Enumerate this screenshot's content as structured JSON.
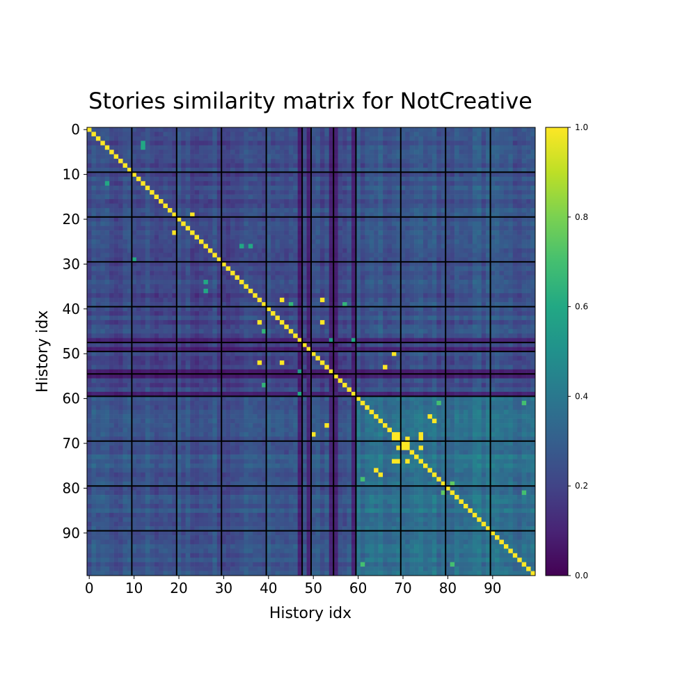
{
  "chart_data": {
    "type": "heatmap",
    "title": "Stories similarity matrix for NotCreative",
    "xlabel": "History idx",
    "ylabel": "History idx",
    "n": 100,
    "x_ticks": [
      "0",
      "10",
      "20",
      "30",
      "40",
      "50",
      "60",
      "70",
      "80",
      "90"
    ],
    "y_ticks": [
      "0",
      "10",
      "20",
      "30",
      "40",
      "50",
      "60",
      "70",
      "80",
      "90"
    ],
    "colorbar": {
      "min": 0.0,
      "max": 1.0,
      "ticks": [
        "0.0",
        "0.2",
        "0.4",
        "0.6",
        "0.8",
        "1.0"
      ]
    },
    "colormap": "viridis",
    "diagonal_value": 1.0,
    "grid_lines": [
      9.5,
      19.5,
      29.5,
      39.5,
      47.5,
      49.5,
      54.5,
      59.5,
      69.5,
      79.5,
      89.5
    ],
    "high_similarity_pairs": [
      [
        19,
        23,
        1.0
      ],
      [
        23,
        19,
        1.0
      ],
      [
        38,
        43,
        1.0
      ],
      [
        38,
        52,
        1.0
      ],
      [
        43,
        38,
        1.0
      ],
      [
        43,
        52,
        1.0
      ],
      [
        52,
        38,
        1.0
      ],
      [
        52,
        43,
        1.0
      ],
      [
        50,
        68,
        1.0
      ],
      [
        68,
        50,
        1.0
      ],
      [
        53,
        66,
        1.0
      ],
      [
        66,
        53,
        1.0
      ],
      [
        64,
        76,
        1.0
      ],
      [
        65,
        77,
        1.0
      ],
      [
        76,
        64,
        1.0
      ],
      [
        77,
        65,
        1.0
      ],
      [
        68,
        69,
        1.0
      ],
      [
        69,
        68,
        1.0
      ],
      [
        68,
        74,
        1.0
      ],
      [
        74,
        68,
        1.0
      ],
      [
        69,
        71,
        1.0
      ],
      [
        71,
        69,
        1.0
      ],
      [
        69,
        74,
        1.0
      ],
      [
        74,
        69,
        1.0
      ],
      [
        71,
        74,
        1.0
      ],
      [
        74,
        71,
        1.0
      ],
      [
        70,
        71,
        1.0
      ],
      [
        71,
        70,
        1.0
      ],
      [
        12,
        4,
        0.6
      ],
      [
        4,
        12,
        0.6
      ],
      [
        3,
        12,
        0.6
      ],
      [
        26,
        34,
        0.6
      ],
      [
        34,
        26,
        0.6
      ],
      [
        29,
        10,
        0.6
      ],
      [
        36,
        26,
        0.6
      ],
      [
        26,
        36,
        0.6
      ],
      [
        39,
        45,
        0.65
      ],
      [
        45,
        39,
        0.65
      ],
      [
        79,
        81,
        0.75
      ],
      [
        81,
        79,
        0.75
      ],
      [
        61,
        78,
        0.7
      ],
      [
        78,
        61,
        0.7
      ],
      [
        97,
        81,
        0.7
      ],
      [
        81,
        97,
        0.7
      ],
      [
        61,
        97,
        0.7
      ],
      [
        97,
        61,
        0.7
      ],
      [
        57,
        39,
        0.65
      ],
      [
        39,
        57,
        0.65
      ],
      [
        47,
        54,
        0.55
      ],
      [
        54,
        47,
        0.55
      ],
      [
        47,
        59,
        0.6
      ],
      [
        59,
        47,
        0.6
      ]
    ],
    "notes_low_rows": [
      47,
      49,
      54,
      55,
      59
    ]
  }
}
